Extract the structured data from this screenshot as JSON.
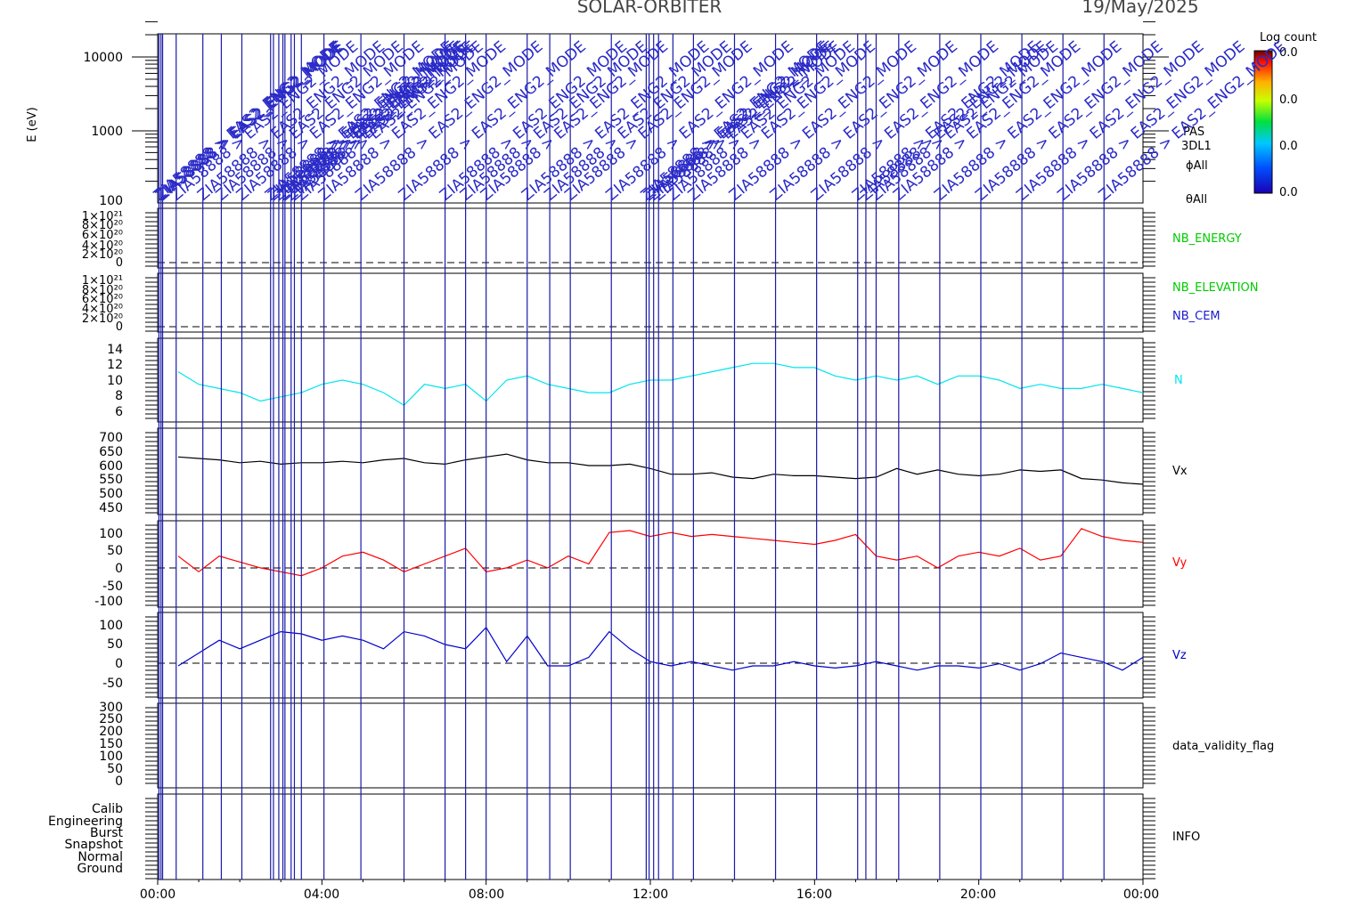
{
  "header": {
    "mission": "SOLAR-ORBITER",
    "date": "19/May/2025"
  },
  "spectrogram": {
    "ylabel": "E (eV)",
    "yticks": [
      "100",
      "1000",
      "10000"
    ],
    "right_labels": [
      "PAS",
      "3DL1",
      "ϕAll",
      "θAll"
    ],
    "colorbar": {
      "title": "Log count",
      "ticks": [
        "0.0",
        "0.0",
        "0.0",
        "0.0"
      ]
    }
  },
  "x_axis": {
    "ticks": [
      "00:00",
      "04:00",
      "08:00",
      "12:00",
      "16:00",
      "20:00",
      "00:00"
    ],
    "range_hours": [
      0,
      24
    ]
  },
  "panel_labels": {
    "nb_energy": "NB_ENERGY",
    "nb_elevation": "NB_ELEVATION",
    "nb_cem": "NB_CEM",
    "n": "N",
    "vx": "Vx",
    "vy": "Vy",
    "vz": "Vz",
    "validity": "data_validity_flag",
    "info": "INFO"
  },
  "tick_labels": {
    "nb_energy": [
      "0",
      "2×10²⁰",
      "4×10²⁰",
      "6×10²⁰",
      "8×10²⁰",
      "1×10²¹"
    ],
    "nb_elevation": [
      "0",
      "2×10²⁰",
      "4×10²⁰",
      "6×10²⁰",
      "8×10²⁰",
      "1×10²¹"
    ],
    "n": [
      "6",
      "8",
      "10",
      "12",
      "14"
    ],
    "vx": [
      "450",
      "500",
      "550",
      "600",
      "650",
      "700"
    ],
    "vy": [
      "-100",
      "-50",
      "0",
      "50",
      "100"
    ],
    "vz": [
      "-50",
      "0",
      "50",
      "100"
    ],
    "validity": [
      "0",
      "50",
      "100",
      "150",
      "200",
      "250",
      "300"
    ],
    "info": [
      "Ground",
      "Normal",
      "Snapshot",
      "Burst",
      "Engineering",
      "Calib"
    ]
  },
  "annotations": {
    "event_text": "ZIA58888 > EAS2_ENG2_MODE"
  },
  "chart_data": [
    {
      "type": "line",
      "name": "N",
      "color": "#00e5ee",
      "ylim": [
        5,
        15
      ],
      "x": [
        0.5,
        1.0,
        1.5,
        2.0,
        2.5,
        3.0,
        3.5,
        4.0,
        4.5,
        5.0,
        5.5,
        6.0,
        6.5,
        7.0,
        7.5,
        8.0,
        8.5,
        9.0,
        9.5,
        10.0,
        10.5,
        11.0,
        11.5,
        12.0,
        12.5,
        13.0,
        13.5,
        14.0,
        14.5,
        15.0,
        15.5,
        16.0,
        16.5,
        17.0,
        17.5,
        18.0,
        18.5,
        19.0,
        19.5,
        20.0,
        20.5,
        21.0,
        21.5,
        22.0,
        22.5,
        23.0,
        23.5,
        24.0
      ],
      "values": [
        11,
        9.5,
        9,
        8.5,
        7.5,
        8,
        8.5,
        9.5,
        10,
        9.5,
        8.5,
        7,
        9.5,
        9,
        9.5,
        7.5,
        10,
        10.5,
        9.5,
        9,
        8.5,
        8.5,
        9.5,
        10,
        10,
        10.5,
        11,
        11.5,
        12,
        12,
        11.5,
        11.5,
        10.5,
        10,
        10.5,
        10,
        10.5,
        9.5,
        10.5,
        10.5,
        10,
        9,
        9.5,
        9,
        9,
        9.5,
        9,
        8.5
      ]
    },
    {
      "type": "line",
      "name": "Vx",
      "color": "#000000",
      "ylim": [
        420,
        720
      ],
      "x": [
        0.5,
        1.0,
        1.5,
        2.0,
        2.5,
        3.0,
        3.5,
        4.0,
        4.5,
        5.0,
        5.5,
        6.0,
        6.5,
        7.0,
        7.5,
        8.0,
        8.5,
        9.0,
        9.5,
        10.0,
        10.5,
        11.0,
        11.5,
        12.0,
        12.5,
        13.0,
        13.5,
        14.0,
        14.5,
        15.0,
        15.5,
        16.0,
        16.5,
        17.0,
        17.5,
        18.0,
        18.5,
        19.0,
        19.5,
        20.0,
        20.5,
        21.0,
        21.5,
        22.0,
        22.5,
        23.0,
        23.5,
        24.0
      ],
      "values": [
        620,
        615,
        610,
        600,
        605,
        595,
        600,
        600,
        605,
        600,
        610,
        615,
        600,
        595,
        610,
        620,
        630,
        610,
        600,
        600,
        590,
        590,
        595,
        580,
        560,
        560,
        565,
        550,
        545,
        560,
        555,
        555,
        550,
        545,
        550,
        580,
        560,
        575,
        560,
        555,
        560,
        575,
        570,
        575,
        545,
        540,
        530,
        525
      ]
    },
    {
      "type": "line",
      "name": "Vy",
      "color": "#ff0000",
      "ylim": [
        -110,
        110
      ],
      "x": [
        0.5,
        1.0,
        1.5,
        2.0,
        2.5,
        3.0,
        3.5,
        4.0,
        4.5,
        5.0,
        5.5,
        6.0,
        6.5,
        7.0,
        7.5,
        8.0,
        8.5,
        9.0,
        9.5,
        10.0,
        10.5,
        11.0,
        11.5,
        12.0,
        12.5,
        13.0,
        13.5,
        14.0,
        14.5,
        15.0,
        15.5,
        16.0,
        16.5,
        17.0,
        17.5,
        18.0,
        18.5,
        19.0,
        19.5,
        20.0,
        20.5,
        21.0,
        21.5,
        22.0,
        22.5,
        23.0,
        23.5,
        24.0
      ],
      "values": [
        20,
        -20,
        20,
        5,
        -10,
        -20,
        -30,
        -10,
        20,
        30,
        10,
        -20,
        0,
        20,
        40,
        -20,
        -10,
        10,
        -10,
        20,
        0,
        80,
        85,
        70,
        80,
        70,
        75,
        70,
        65,
        60,
        55,
        50,
        60,
        75,
        20,
        10,
        20,
        -10,
        20,
        30,
        20,
        40,
        10,
        20,
        90,
        70,
        60,
        55
      ]
    },
    {
      "type": "line",
      "name": "Vz",
      "color": "#0000cc",
      "ylim": [
        -75,
        125
      ],
      "x": [
        0.5,
        1.0,
        1.5,
        2.0,
        2.5,
        3.0,
        3.5,
        4.0,
        4.5,
        5.0,
        5.5,
        6.0,
        6.5,
        7.0,
        7.5,
        8.0,
        8.5,
        9.0,
        9.5,
        10.0,
        10.5,
        11.0,
        11.5,
        12.0,
        12.5,
        13.0,
        13.5,
        14.0,
        14.5,
        15.0,
        15.5,
        16.0,
        16.5,
        17.0,
        17.5,
        18.0,
        18.5,
        19.0,
        19.5,
        20.0,
        20.5,
        21.0,
        21.5,
        22.0,
        22.5,
        23.0,
        23.5,
        24.0
      ],
      "values": [
        0,
        30,
        60,
        40,
        60,
        80,
        75,
        60,
        70,
        60,
        40,
        80,
        70,
        50,
        40,
        90,
        10,
        70,
        0,
        0,
        20,
        80,
        40,
        10,
        0,
        10,
        0,
        -10,
        0,
        0,
        10,
        0,
        -5,
        0,
        10,
        0,
        -10,
        0,
        0,
        -5,
        5,
        -10,
        5,
        30,
        20,
        10,
        -10,
        20
      ]
    }
  ],
  "event_markers_hours": [
    0.03,
    0.08,
    0.12,
    0.45,
    1.1,
    1.55,
    2.05,
    2.75,
    2.82,
    2.95,
    3.05,
    3.1,
    3.25,
    3.33,
    3.5,
    4.05,
    4.95,
    6.0,
    7.0,
    7.5,
    8.0,
    9.0,
    9.55,
    10.05,
    11.05,
    11.9,
    11.97,
    12.08,
    12.2,
    12.55,
    13.05,
    14.05,
    15.05,
    16.05,
    17.05,
    17.25,
    17.5,
    18.05,
    19.05,
    20.05,
    21.05,
    22.05,
    23.05
  ]
}
